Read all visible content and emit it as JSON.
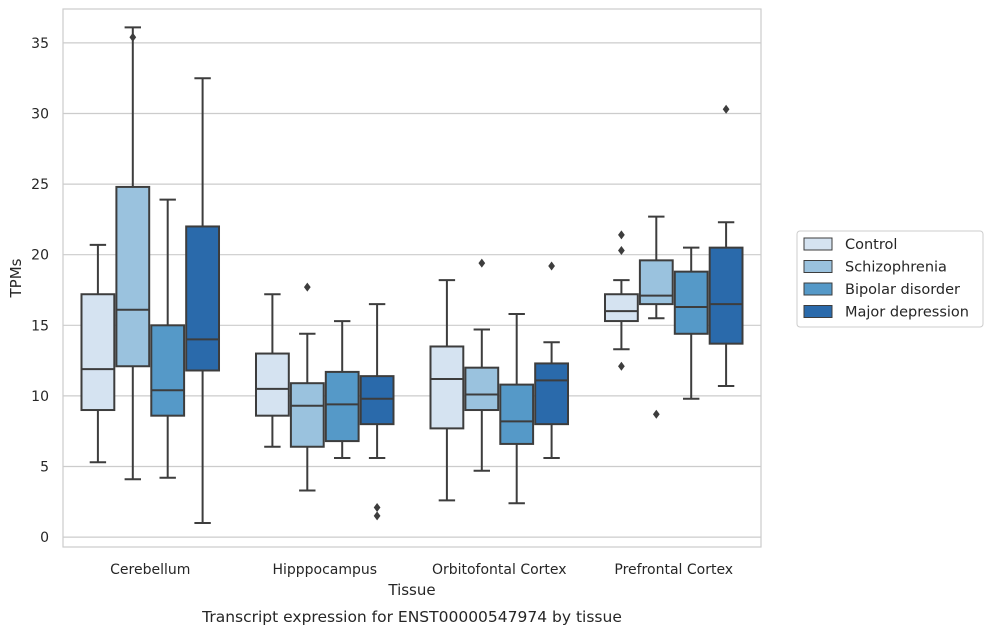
{
  "chart_data": {
    "type": "box",
    "title": "",
    "caption": "Transcript expression for ENST00000547974 by tissue",
    "xlabel": "Tissue",
    "ylabel": "TPMs",
    "ylim": [
      -0.7,
      37.4
    ],
    "yticks": [
      0,
      5,
      10,
      15,
      20,
      25,
      30,
      35
    ],
    "grid": "horizontal",
    "legend_position": "right",
    "categories": [
      "Cerebellum",
      "Hipppocampus",
      "Orbitofontal Cortex",
      "Prefrontal Cortex"
    ],
    "series": [
      {
        "name": "Control",
        "color": "#d5e3f1",
        "boxes": [
          {
            "whislo": 5.3,
            "q1": 9.0,
            "med": 11.9,
            "q3": 17.2,
            "whishi": 20.7,
            "fliers": []
          },
          {
            "whislo": 6.4,
            "q1": 8.6,
            "med": 10.5,
            "q3": 13.0,
            "whishi": 17.2,
            "fliers": []
          },
          {
            "whislo": 2.6,
            "q1": 7.7,
            "med": 11.2,
            "q3": 13.5,
            "whishi": 18.2,
            "fliers": []
          },
          {
            "whislo": 13.3,
            "q1": 15.3,
            "med": 16.0,
            "q3": 17.2,
            "whishi": 18.2,
            "fliers": [
              21.4,
              20.3,
              12.1
            ]
          }
        ]
      },
      {
        "name": "Schizophrenia",
        "color": "#9ac2de",
        "boxes": [
          {
            "whislo": 4.1,
            "q1": 12.1,
            "med": 16.1,
            "q3": 24.8,
            "whishi": 36.1,
            "fliers": [
              35.4
            ]
          },
          {
            "whislo": 3.3,
            "q1": 6.4,
            "med": 9.3,
            "q3": 10.9,
            "whishi": 14.4,
            "fliers": [
              17.7
            ]
          },
          {
            "whislo": 4.7,
            "q1": 9.0,
            "med": 10.1,
            "q3": 12.0,
            "whishi": 14.7,
            "fliers": [
              19.4
            ]
          },
          {
            "whislo": 15.5,
            "q1": 16.5,
            "med": 17.1,
            "q3": 19.6,
            "whishi": 22.7,
            "fliers": [
              8.7
            ]
          }
        ]
      },
      {
        "name": "Bipolar disorder",
        "color": "#5599c8",
        "boxes": [
          {
            "whislo": 4.2,
            "q1": 8.6,
            "med": 10.4,
            "q3": 15.0,
            "whishi": 23.9,
            "fliers": []
          },
          {
            "whislo": 5.6,
            "q1": 6.8,
            "med": 9.4,
            "q3": 11.7,
            "whishi": 15.3,
            "fliers": []
          },
          {
            "whislo": 2.4,
            "q1": 6.6,
            "med": 8.2,
            "q3": 10.8,
            "whishi": 15.8,
            "fliers": []
          },
          {
            "whislo": 9.8,
            "q1": 14.4,
            "med": 16.3,
            "q3": 18.8,
            "whishi": 20.5,
            "fliers": []
          }
        ]
      },
      {
        "name": "Major depression",
        "color": "#2a6aab",
        "boxes": [
          {
            "whislo": 1.0,
            "q1": 11.8,
            "med": 14.0,
            "q3": 22.0,
            "whishi": 32.5,
            "fliers": []
          },
          {
            "whislo": 5.6,
            "q1": 8.0,
            "med": 9.8,
            "q3": 11.4,
            "whishi": 16.5,
            "fliers": [
              2.1,
              1.5
            ]
          },
          {
            "whislo": 5.6,
            "q1": 8.0,
            "med": 11.1,
            "q3": 12.3,
            "whishi": 13.8,
            "fliers": [
              19.2
            ]
          },
          {
            "whislo": 10.7,
            "q1": 13.7,
            "med": 16.5,
            "q3": 20.5,
            "whishi": 22.3,
            "fliers": [
              30.3
            ]
          }
        ]
      }
    ]
  }
}
